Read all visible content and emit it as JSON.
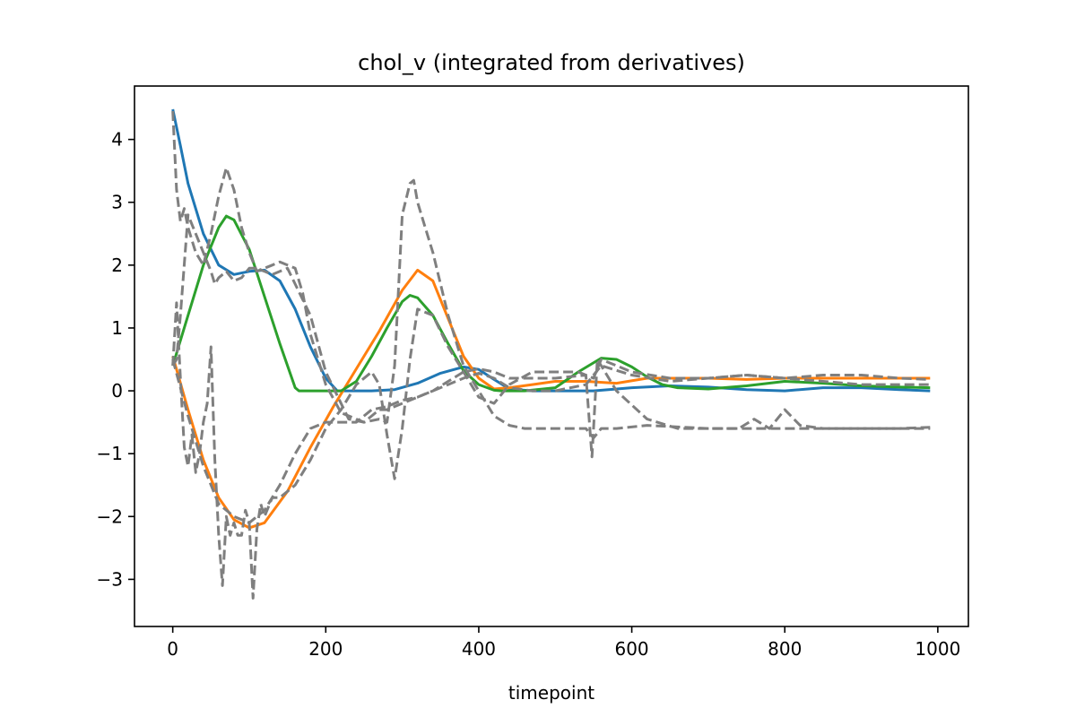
{
  "chart_data": {
    "type": "line",
    "title": "chol_v (integrated from derivatives)",
    "xlabel": "timepoint",
    "ylabel": "",
    "xlim": [
      -50,
      1040
    ],
    "ylim": [
      -3.75,
      4.85
    ],
    "xticks": [
      0,
      200,
      400,
      600,
      800,
      1000
    ],
    "yticks": [
      -3,
      -2,
      -1,
      0,
      1,
      2,
      3,
      4
    ],
    "xtick_labels": [
      "0",
      "200",
      "400",
      "600",
      "800",
      "1000"
    ],
    "ytick_labels": [
      "−3",
      "−2",
      "−1",
      "0",
      "1",
      "2",
      "3",
      "4"
    ],
    "grid": false,
    "legend": "none",
    "series": [
      {
        "style": "solid",
        "color": "#1f77b4",
        "x": [
          0,
          10,
          20,
          40,
          60,
          80,
          100,
          120,
          140,
          160,
          180,
          200,
          215,
          230,
          260,
          290,
          320,
          350,
          380,
          400,
          420,
          440,
          470,
          500,
          550,
          600,
          650,
          700,
          750,
          800,
          850,
          900,
          950,
          990
        ],
        "y": [
          4.48,
          3.9,
          3.3,
          2.5,
          2.0,
          1.85,
          1.9,
          1.92,
          1.75,
          1.3,
          0.7,
          0.2,
          0.0,
          0.0,
          0.0,
          0.02,
          0.12,
          0.28,
          0.38,
          0.34,
          0.18,
          0.03,
          0.0,
          0.0,
          0.0,
          0.05,
          0.08,
          0.06,
          0.02,
          0.0,
          0.05,
          0.05,
          0.02,
          0.0
        ]
      },
      {
        "style": "solid",
        "color": "#ff7f0e",
        "x": [
          0,
          20,
          40,
          60,
          80,
          100,
          120,
          150,
          180,
          210,
          240,
          270,
          300,
          320,
          340,
          360,
          380,
          400,
          420,
          440,
          470,
          500,
          540,
          580,
          620,
          660,
          700,
          750,
          800,
          850,
          900,
          950,
          990
        ],
        "y": [
          0.55,
          -0.3,
          -1.1,
          -1.7,
          -2.05,
          -2.18,
          -2.1,
          -1.6,
          -0.9,
          -0.25,
          0.35,
          0.95,
          1.6,
          1.92,
          1.75,
          1.15,
          0.55,
          0.2,
          0.03,
          0.05,
          0.1,
          0.15,
          0.15,
          0.12,
          0.2,
          0.2,
          0.2,
          0.18,
          0.2,
          0.2,
          0.2,
          0.2,
          0.2
        ]
      },
      {
        "style": "solid",
        "color": "#2ca02c",
        "x": [
          0,
          20,
          40,
          60,
          70,
          80,
          100,
          120,
          140,
          160,
          165,
          180,
          200,
          220,
          240,
          260,
          280,
          300,
          310,
          320,
          340,
          360,
          380,
          400,
          420,
          430,
          460,
          500,
          530,
          560,
          580,
          600,
          620,
          640,
          660,
          700,
          750,
          800,
          850,
          900,
          950,
          990
        ],
        "y": [
          0.4,
          1.2,
          2.0,
          2.6,
          2.78,
          2.72,
          2.25,
          1.5,
          0.75,
          0.05,
          0.0,
          0.0,
          0.0,
          0.0,
          0.15,
          0.55,
          1.0,
          1.42,
          1.52,
          1.48,
          1.2,
          0.75,
          0.32,
          0.1,
          0.01,
          0.0,
          0.0,
          0.05,
          0.3,
          0.52,
          0.5,
          0.38,
          0.22,
          0.1,
          0.05,
          0.03,
          0.08,
          0.15,
          0.12,
          0.08,
          0.06,
          0.05
        ]
      },
      {
        "style": "dashed",
        "color": "#7f7f7f",
        "x": [
          0,
          5,
          10,
          15,
          20,
          25,
          30,
          40,
          50,
          60,
          70,
          80,
          90,
          100,
          110,
          120,
          130,
          140,
          150,
          160,
          170,
          180,
          200,
          220,
          250,
          270,
          280,
          290,
          300,
          310,
          315,
          320,
          330,
          340,
          360,
          380,
          400,
          420,
          440,
          460,
          500,
          540,
          550,
          560,
          580,
          620,
          700,
          750,
          800,
          900,
          990
        ],
        "y": [
          4.45,
          3.2,
          2.7,
          2.9,
          2.6,
          2.4,
          2.2,
          2.0,
          2.5,
          3.1,
          3.55,
          3.2,
          2.6,
          2.2,
          1.9,
          1.95,
          2.0,
          2.05,
          2.0,
          1.95,
          1.55,
          0.9,
          0.1,
          -0.35,
          -0.5,
          -0.45,
          -0.5,
          0.4,
          2.8,
          3.3,
          3.35,
          3.0,
          2.6,
          2.2,
          1.2,
          0.4,
          0.0,
          -0.4,
          -0.55,
          -0.6,
          -0.6,
          -0.6,
          -0.75,
          -0.6,
          -0.6,
          -0.55,
          -0.6,
          -0.6,
          -0.6,
          -0.6,
          -0.6
        ]
      },
      {
        "style": "dashed",
        "color": "#7f7f7f",
        "x": [
          0,
          5,
          10,
          20,
          30,
          40,
          50,
          55,
          60,
          70,
          80,
          90,
          100,
          110,
          120,
          130,
          150,
          180,
          200,
          230,
          250,
          270,
          280,
          290,
          300,
          310,
          320,
          340,
          360,
          380,
          400,
          420,
          440,
          470,
          500,
          540,
          560,
          600,
          650,
          700,
          750,
          800,
          850,
          900,
          950,
          990
        ],
        "y": [
          0.4,
          0.5,
          1.2,
          2.8,
          2.5,
          2.2,
          1.9,
          1.7,
          1.8,
          1.9,
          1.75,
          1.8,
          1.95,
          1.95,
          1.9,
          1.85,
          1.95,
          1.2,
          0.3,
          -0.45,
          -0.5,
          -0.3,
          -0.3,
          -0.25,
          -0.2,
          -0.15,
          -0.1,
          0.0,
          0.1,
          0.2,
          0.28,
          0.2,
          0.05,
          0.0,
          0.0,
          0.1,
          0.4,
          0.25,
          0.15,
          0.2,
          0.25,
          0.2,
          0.25,
          0.25,
          0.2,
          0.18
        ]
      },
      {
        "style": "dashed",
        "color": "#7f7f7f",
        "x": [
          0,
          5,
          10,
          15,
          20,
          25,
          30,
          35,
          40,
          45,
          50,
          55,
          60,
          65,
          70,
          75,
          80,
          85,
          90,
          95,
          100,
          105,
          110,
          115,
          120,
          130,
          140,
          160,
          180,
          200,
          220,
          240,
          260,
          270,
          280,
          290,
          300,
          310,
          320,
          340,
          360,
          380,
          400,
          420,
          440,
          470,
          500,
          530,
          550,
          560,
          600,
          650,
          700,
          750,
          800,
          850,
          900,
          950,
          990
        ],
        "y": [
          0.4,
          1.4,
          0.2,
          -0.9,
          -1.2,
          -0.7,
          -1.3,
          -1.0,
          -0.5,
          -0.2,
          0.7,
          -1.1,
          -2.3,
          -3.1,
          -2.0,
          -2.3,
          -2.1,
          -2.3,
          -2.3,
          -1.9,
          -2.1,
          -3.3,
          -2.2,
          -1.8,
          -2.0,
          -1.7,
          -1.7,
          -1.5,
          -1.1,
          -0.6,
          -0.3,
          0.1,
          0.3,
          0.1,
          -0.7,
          -1.4,
          -0.6,
          0.5,
          1.3,
          1.2,
          0.7,
          0.3,
          -0.1,
          -0.2,
          0.1,
          0.3,
          0.3,
          0.3,
          0.2,
          0.5,
          0.3,
          0.2,
          0.2,
          0.25,
          0.2,
          0.15,
          0.1,
          0.1,
          0.1
        ]
      },
      {
        "style": "dashed",
        "color": "#7f7f7f",
        "x": [
          0,
          20,
          40,
          60,
          80,
          100,
          120,
          140,
          160,
          180,
          200,
          220,
          240,
          260,
          280,
          300,
          320,
          340,
          360,
          380,
          400,
          420,
          440,
          460,
          500,
          540,
          548,
          555,
          560,
          580,
          620,
          660,
          700,
          740,
          760,
          780,
          800,
          820,
          850,
          900,
          950,
          990
        ],
        "y": [
          0.5,
          -0.4,
          -1.2,
          -1.8,
          -2.0,
          -2.1,
          -1.9,
          -1.5,
          -1.0,
          -0.6,
          -0.5,
          -0.5,
          -0.5,
          -0.3,
          -0.25,
          -0.15,
          -0.1,
          0.0,
          0.15,
          0.3,
          0.35,
          0.3,
          0.2,
          0.2,
          0.2,
          0.25,
          -1.05,
          0.5,
          0.4,
          0.0,
          -0.45,
          -0.6,
          -0.6,
          -0.6,
          -0.45,
          -0.6,
          -0.3,
          -0.55,
          -0.6,
          -0.6,
          -0.6,
          -0.58
        ]
      }
    ]
  }
}
